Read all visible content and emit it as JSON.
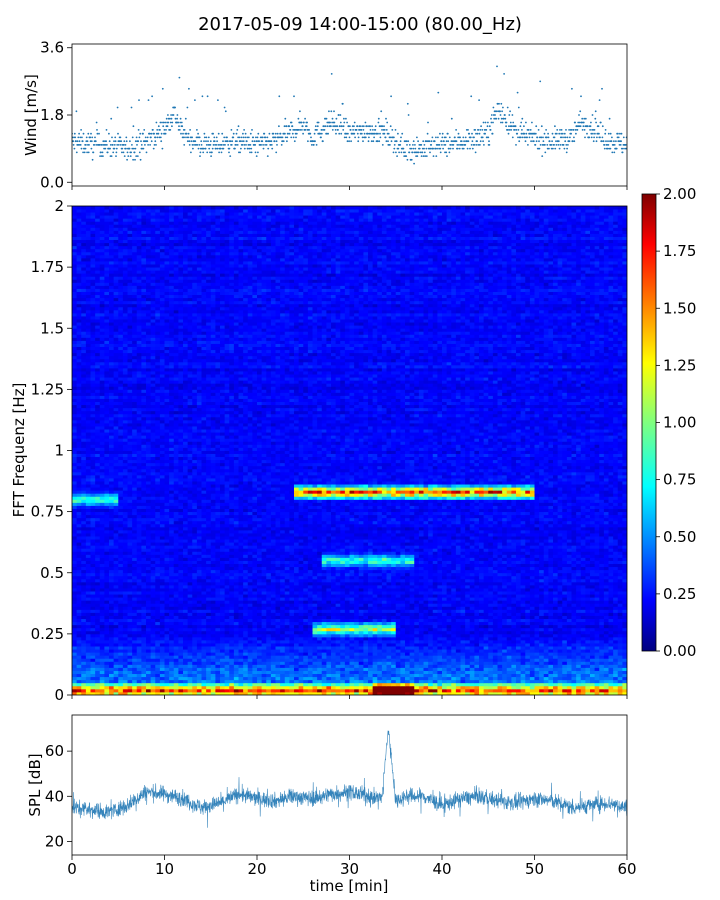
{
  "title": "2017-05-09 14:00-15:00 (80.00_Hz)",
  "chart_data": [
    {
      "type": "scatter",
      "panel": "wind",
      "ylabel": "Wind [m/s]",
      "xlim": [
        0,
        60
      ],
      "ylim": [
        0,
        3.6
      ],
      "yticks": [
        "0.0",
        "1.8",
        "3.6"
      ],
      "ytick_values": [
        0,
        1.8,
        3.6
      ],
      "marker_color": "#1f77b4",
      "series": [
        {
          "x_minutes": [
            0,
            2,
            4,
            6,
            8,
            10,
            11,
            12,
            14,
            16,
            18,
            20,
            22,
            24,
            25,
            26,
            28,
            30,
            32,
            34,
            36,
            38,
            40,
            42,
            44,
            45,
            46,
            48,
            50,
            52,
            54,
            55,
            56,
            58,
            60
          ],
          "y_mean": [
            1.1,
            1.0,
            1.0,
            0.9,
            1.1,
            1.4,
            1.9,
            1.3,
            1.0,
            1.0,
            1.1,
            1.0,
            1.1,
            1.4,
            1.6,
            1.2,
            1.6,
            1.3,
            1.4,
            1.3,
            0.9,
            0.9,
            1.0,
            1.1,
            1.2,
            1.3,
            2.0,
            1.3,
            1.2,
            1.1,
            1.2,
            1.6,
            1.5,
            1.1,
            1.0
          ]
        }
      ]
    },
    {
      "type": "heatmap",
      "panel": "spectrogram",
      "ylabel": "FFT Frequenz [Hz]",
      "xlim": [
        0,
        60
      ],
      "ylim": [
        0,
        2
      ],
      "yticks": [
        "0",
        "0.25",
        "0.5",
        "0.75",
        "1",
        "1.25",
        "1.5",
        "1.75",
        "2"
      ],
      "ytick_values": [
        0,
        0.25,
        0.5,
        0.75,
        1,
        1.25,
        1.5,
        1.75,
        2
      ],
      "colormap": "jet",
      "clim": [
        0,
        2
      ],
      "colorbar_ticks": [
        "0.00",
        "0.25",
        "0.50",
        "0.75",
        "1.00",
        "1.25",
        "1.50",
        "1.75",
        "2.00"
      ],
      "colorbar_values": [
        0,
        0.25,
        0.5,
        0.75,
        1,
        1.25,
        1.5,
        1.75,
        2
      ],
      "background_level": 0.25,
      "features": [
        {
          "f_hz": 0.02,
          "t_start": 0,
          "t_end": 60,
          "level": 1.6
        },
        {
          "f_hz": 0.8,
          "t_start": 0,
          "t_end": 5,
          "level": 1.0
        },
        {
          "f_hz": 0.83,
          "t_start": 24,
          "t_end": 50,
          "level": 1.9
        },
        {
          "f_hz": 0.55,
          "t_start": 27,
          "t_end": 37,
          "level": 1.0
        },
        {
          "f_hz": 0.27,
          "t_start": 26,
          "t_end": 35,
          "level": 1.3
        },
        {
          "f_hz": 0.02,
          "t_start": 32.5,
          "t_end": 37,
          "level": 2.0
        }
      ]
    },
    {
      "type": "line",
      "panel": "spl",
      "ylabel": "SPL [dB]",
      "xlabel": "time [min]",
      "xlim": [
        0,
        60
      ],
      "ylim": [
        14,
        76
      ],
      "yticks": [
        "20",
        "40",
        "60"
      ],
      "ytick_values": [
        20,
        40,
        60
      ],
      "xticks": [
        "0",
        "10",
        "20",
        "30",
        "40",
        "50",
        "60"
      ],
      "xtick_values": [
        0,
        10,
        20,
        30,
        40,
        50,
        60
      ],
      "line_color": "#1f77b4",
      "series": [
        {
          "x_minutes": [
            0,
            2,
            4,
            6,
            8,
            10,
            12,
            14,
            16,
            18,
            20,
            22,
            24,
            26,
            28,
            30,
            32,
            33.5,
            34.2,
            35,
            36,
            38,
            40,
            42,
            44,
            46,
            48,
            50,
            52,
            54,
            56,
            58,
            60
          ],
          "y_mean": [
            35,
            34,
            33,
            36,
            42,
            41,
            39,
            35,
            37,
            41,
            39,
            38,
            40,
            39,
            41,
            42,
            40,
            39,
            70,
            38,
            40,
            40,
            36,
            39,
            40,
            38,
            37,
            39,
            38,
            35,
            36,
            37,
            35
          ]
        }
      ]
    }
  ]
}
